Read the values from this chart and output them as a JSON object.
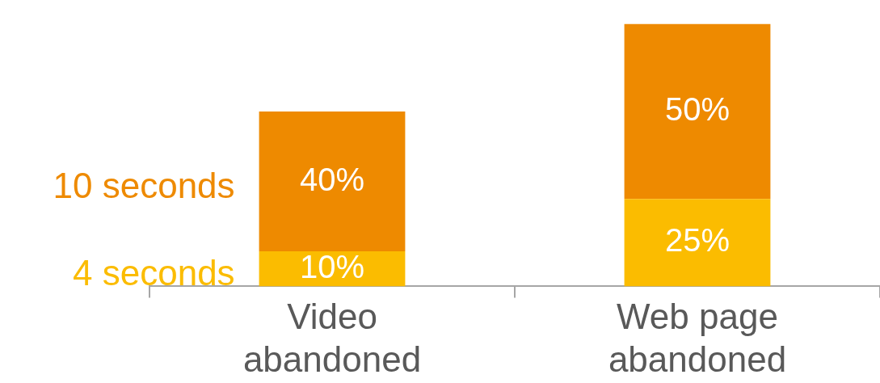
{
  "chart_data": {
    "type": "bar",
    "stacked": true,
    "categories": [
      "Video abandoned",
      "Web page abandoned"
    ],
    "series": [
      {
        "name": "4 seconds",
        "color": "#fbbc00",
        "values": [
          10,
          25
        ],
        "value_labels": [
          "10%",
          "25%"
        ]
      },
      {
        "name": "10 seconds",
        "color": "#ee8a00",
        "values": [
          40,
          50
        ],
        "value_labels": [
          "40%",
          "50%"
        ]
      }
    ]
  }
}
